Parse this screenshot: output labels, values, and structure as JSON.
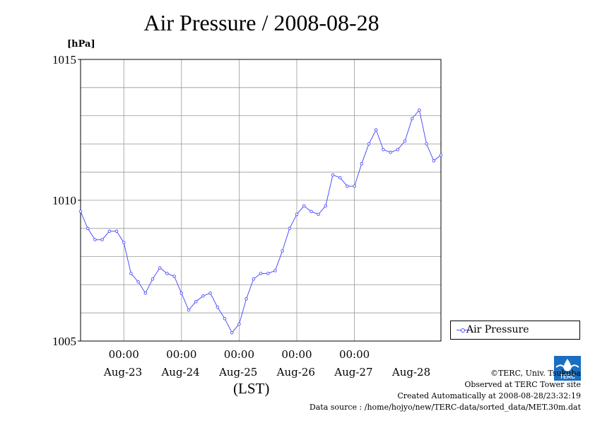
{
  "title": "Air Pressure / 2008-08-28",
  "unit_label": "[hPa]",
  "xlabel": "(LST)",
  "legend": {
    "label": "Air Pressure"
  },
  "credits": {
    "copyright": "©TERC, Univ. Tsukuba",
    "observed": "Observed at TERC Tower site",
    "created": "Created Automatically at 2008-08-28/23:32:19",
    "source": "Data source : /home/hojyo/new/TERC-data/sorted_data/MET.30m.dat"
  },
  "logo": {
    "text": "TERC"
  },
  "colors": {
    "series": "#5050ff",
    "grid": "#999999"
  },
  "chart_data": {
    "type": "line",
    "title": "Air Pressure / 2008-08-28",
    "ylabel": "[hPa]",
    "xlabel": "(LST)",
    "ylim": [
      1005,
      1015
    ],
    "yticks": [
      "1005",
      "1010",
      "1015"
    ],
    "xlim": [
      "2008-08-22 06:00",
      "2008-08-28 12:00"
    ],
    "xticks": [
      {
        "time": "2008-08-23 00:00",
        "label": "00:00",
        "date": "Aug-23"
      },
      {
        "time": "2008-08-24 00:00",
        "label": "00:00",
        "date": "Aug-24"
      },
      {
        "time": "2008-08-25 00:00",
        "label": "00:00",
        "date": "Aug-25"
      },
      {
        "time": "2008-08-26 00:00",
        "label": "00:00",
        "date": "Aug-26"
      },
      {
        "time": "2008-08-27 00:00",
        "label": "00:00",
        "date": "Aug-27"
      }
    ],
    "xticks_dates_extra": [
      {
        "date": "Aug-28"
      }
    ],
    "grid": true,
    "legend_position": "right",
    "series": [
      {
        "name": "Air Pressure",
        "points": [
          [
            "2008-08-22 06:00",
            1009.6
          ],
          [
            "2008-08-22 09:00",
            1009.0
          ],
          [
            "2008-08-22 12:00",
            1008.6
          ],
          [
            "2008-08-22 15:00",
            1008.6
          ],
          [
            "2008-08-22 18:00",
            1008.9
          ],
          [
            "2008-08-22 21:00",
            1008.9
          ],
          [
            "2008-08-23 00:00",
            1008.5
          ],
          [
            "2008-08-23 03:00",
            1007.4
          ],
          [
            "2008-08-23 06:00",
            1007.1
          ],
          [
            "2008-08-23 09:00",
            1006.7
          ],
          [
            "2008-08-23 12:00",
            1007.2
          ],
          [
            "2008-08-23 15:00",
            1007.6
          ],
          [
            "2008-08-23 18:00",
            1007.4
          ],
          [
            "2008-08-23 21:00",
            1007.3
          ],
          [
            "2008-08-24 00:00",
            1006.7
          ],
          [
            "2008-08-24 03:00",
            1006.1
          ],
          [
            "2008-08-24 06:00",
            1006.4
          ],
          [
            "2008-08-24 09:00",
            1006.6
          ],
          [
            "2008-08-24 12:00",
            1006.7
          ],
          [
            "2008-08-24 15:00",
            1006.2
          ],
          [
            "2008-08-24 18:00",
            1005.8
          ],
          [
            "2008-08-24 21:00",
            1005.3
          ],
          [
            "2008-08-25 00:00",
            1005.6
          ],
          [
            "2008-08-25 03:00",
            1006.5
          ],
          [
            "2008-08-25 06:00",
            1007.2
          ],
          [
            "2008-08-25 09:00",
            1007.4
          ],
          [
            "2008-08-25 12:00",
            1007.4
          ],
          [
            "2008-08-25 15:00",
            1007.5
          ],
          [
            "2008-08-25 18:00",
            1008.2
          ],
          [
            "2008-08-25 21:00",
            1009.0
          ],
          [
            "2008-08-26 00:00",
            1009.5
          ],
          [
            "2008-08-26 03:00",
            1009.8
          ],
          [
            "2008-08-26 06:00",
            1009.6
          ],
          [
            "2008-08-26 09:00",
            1009.5
          ],
          [
            "2008-08-26 12:00",
            1009.8
          ],
          [
            "2008-08-26 15:00",
            1010.9
          ],
          [
            "2008-08-26 18:00",
            1010.8
          ],
          [
            "2008-08-26 21:00",
            1010.5
          ],
          [
            "2008-08-27 00:00",
            1010.5
          ],
          [
            "2008-08-27 03:00",
            1011.3
          ],
          [
            "2008-08-27 06:00",
            1012.0
          ],
          [
            "2008-08-27 09:00",
            1012.5
          ],
          [
            "2008-08-27 12:00",
            1011.8
          ],
          [
            "2008-08-27 15:00",
            1011.7
          ],
          [
            "2008-08-27 18:00",
            1011.8
          ],
          [
            "2008-08-27 21:00",
            1012.1
          ],
          [
            "2008-08-28 00:00",
            1012.9
          ],
          [
            "2008-08-28 03:00",
            1013.2
          ],
          [
            "2008-08-28 06:00",
            1012.0
          ],
          [
            "2008-08-28 09:00",
            1011.4
          ],
          [
            "2008-08-28 12:00",
            1011.6
          ]
        ]
      }
    ]
  }
}
